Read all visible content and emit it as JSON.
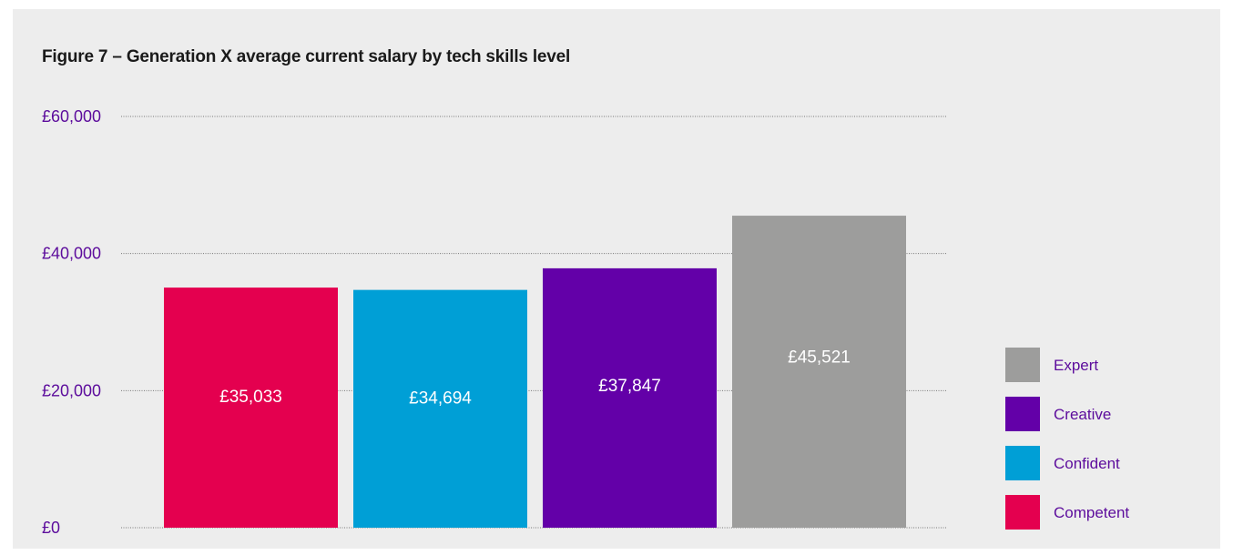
{
  "chart_data": {
    "type": "bar",
    "title": "Figure 7 – Generation X average current salary by tech skills level",
    "xlabel": "",
    "ylabel": "",
    "ylim": [
      0,
      60000
    ],
    "yticks": [
      0,
      20000,
      40000,
      60000
    ],
    "ytick_labels": [
      "£0",
      "£20,000",
      "£40,000",
      "£60,000"
    ],
    "grid": true,
    "legend_position": "right",
    "series": [
      {
        "name": "Competent",
        "value": 35033,
        "label": "£35,033",
        "color": "#e4004f"
      },
      {
        "name": "Confident",
        "value": 34694,
        "label": "£34,694",
        "color": "#009fd6"
      },
      {
        "name": "Creative",
        "value": 37847,
        "label": "£37,847",
        "color": "#6300a8"
      },
      {
        "name": "Expert",
        "value": 45521,
        "label": "£45,521",
        "color": "#9d9d9c"
      }
    ],
    "legend_order": [
      "Expert",
      "Creative",
      "Confident",
      "Competent"
    ],
    "colors": {
      "axis_text": "#5c0c9c",
      "legend_text": "#5c0c9c",
      "bar_label": "#ffffff",
      "grid": "#777777",
      "background": "#ededed"
    }
  }
}
